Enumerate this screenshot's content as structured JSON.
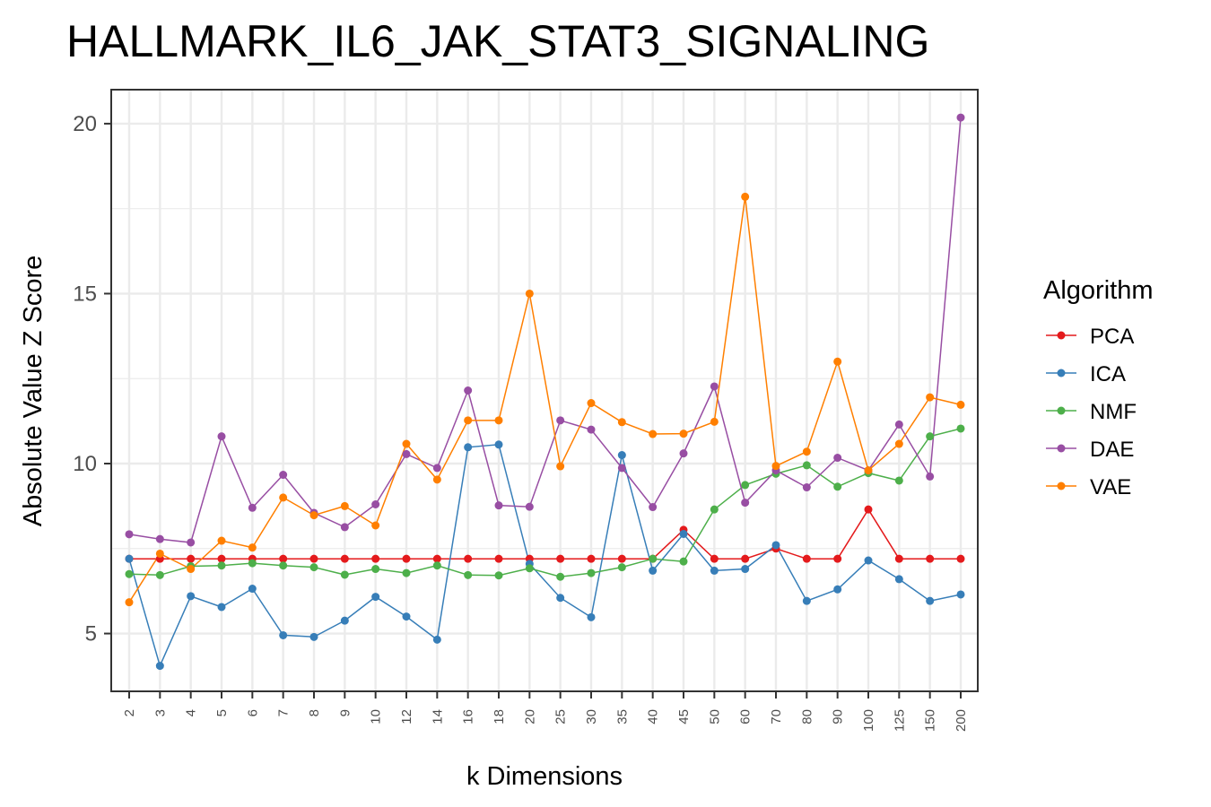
{
  "chart_data": {
    "type": "line",
    "title": "HALLMARK_IL6_JAK_STAT3_SIGNALING",
    "xlabel": "k Dimensions",
    "ylabel": "Absolute Value Z Score",
    "ylim": [
      3.3,
      21
    ],
    "yticks": [
      5,
      10,
      15,
      20
    ],
    "grid": true,
    "legend_title": "Algorithm",
    "legend_position": "right",
    "categories": [
      "2",
      "3",
      "4",
      "5",
      "6",
      "7",
      "8",
      "9",
      "10",
      "12",
      "14",
      "16",
      "18",
      "20",
      "25",
      "30",
      "35",
      "40",
      "45",
      "50",
      "60",
      "70",
      "80",
      "90",
      "100",
      "125",
      "150",
      "200"
    ],
    "series": [
      {
        "name": "PCA",
        "color": "#e41a1c",
        "values": [
          7.2,
          7.2,
          7.2,
          7.2,
          7.2,
          7.2,
          7.2,
          7.2,
          7.2,
          7.2,
          7.2,
          7.2,
          7.2,
          7.2,
          7.2,
          7.2,
          7.2,
          7.2,
          8.05,
          7.2,
          7.2,
          7.5,
          7.2,
          7.2,
          8.65,
          7.2,
          7.2,
          7.2
        ]
      },
      {
        "name": "ICA",
        "color": "#377eb8",
        "values": [
          7.2,
          4.05,
          6.1,
          5.78,
          6.32,
          4.95,
          4.9,
          5.38,
          6.08,
          5.5,
          4.82,
          10.48,
          10.56,
          7.05,
          6.05,
          5.48,
          10.25,
          6.85,
          7.93,
          6.85,
          6.9,
          7.6,
          5.96,
          6.3,
          7.15,
          6.6,
          5.96,
          6.15
        ]
      },
      {
        "name": "NMF",
        "color": "#4daf4a",
        "values": [
          6.75,
          6.72,
          6.98,
          7.0,
          7.07,
          7.0,
          6.95,
          6.73,
          6.9,
          6.78,
          7.0,
          6.72,
          6.71,
          6.92,
          6.67,
          6.78,
          6.95,
          7.2,
          7.12,
          8.65,
          9.37,
          9.7,
          9.95,
          9.32,
          9.72,
          9.5,
          10.8,
          11.03
        ]
      },
      {
        "name": "DAE",
        "color": "#984ea3",
        "values": [
          7.92,
          7.78,
          7.68,
          10.8,
          8.7,
          9.67,
          8.55,
          8.13,
          8.8,
          10.28,
          9.87,
          12.15,
          8.77,
          8.73,
          11.27,
          11.0,
          9.87,
          8.72,
          10.3,
          12.27,
          8.85,
          9.8,
          9.3,
          10.17,
          9.8,
          11.15,
          9.62,
          20.18
        ]
      },
      {
        "name": "VAE",
        "color": "#ff7f00",
        "values": [
          5.92,
          7.35,
          6.9,
          7.73,
          7.53,
          9.0,
          8.48,
          8.75,
          8.18,
          10.58,
          9.53,
          11.27,
          11.27,
          15.0,
          9.92,
          11.78,
          11.22,
          10.87,
          10.88,
          11.23,
          17.85,
          9.93,
          10.35,
          13.0,
          9.8,
          10.58,
          11.95,
          11.73
        ]
      }
    ]
  }
}
